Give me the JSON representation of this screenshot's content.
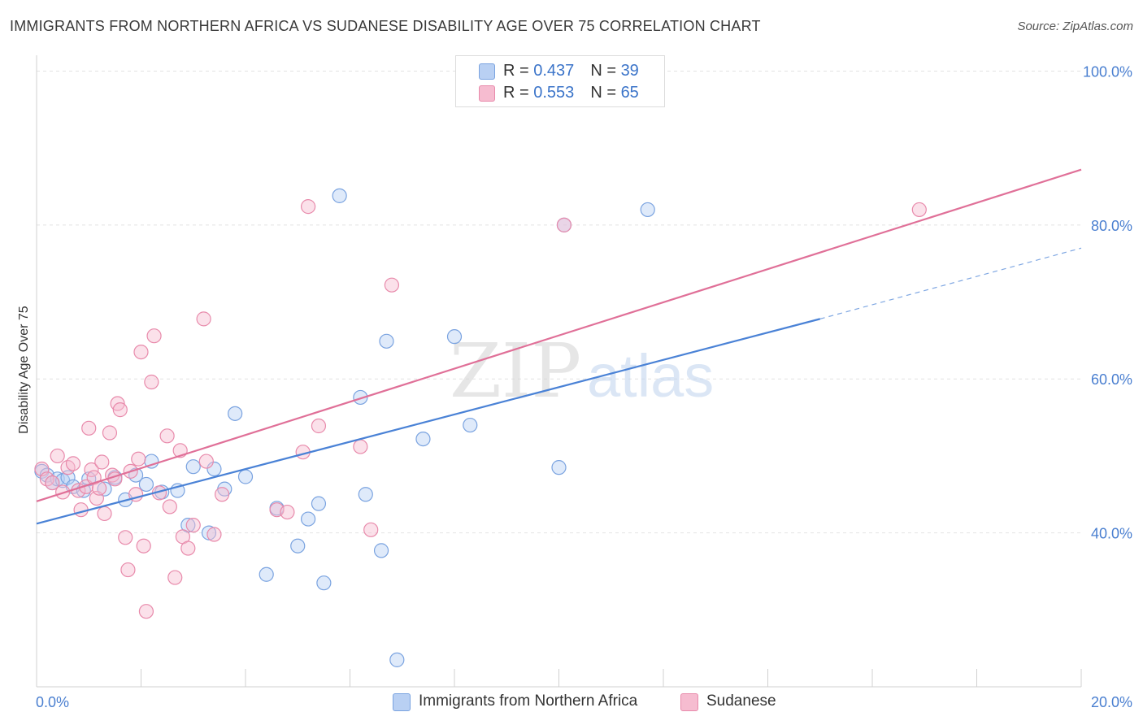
{
  "title": "IMMIGRANTS FROM NORTHERN AFRICA VS SUDANESE DISABILITY AGE OVER 75 CORRELATION CHART",
  "source": "Source: ZipAtlas.com",
  "colors": {
    "blue": "#4a82d6",
    "blue_fill": "#b9d0f3",
    "pink": "#e07098",
    "pink_fill": "#f6bcd0",
    "grid": "#e2e2e2",
    "axis_text": "#4a7fd0"
  },
  "legend": {
    "rows": [
      {
        "r_label": "R = ",
        "r_value": "0.437",
        "n_label": "N = ",
        "n_value": "39",
        "color": "#b9d0f3",
        "border": "#7aa3e0"
      },
      {
        "r_label": "R = ",
        "r_value": "0.553",
        "n_label": "N = ",
        "n_value": "65",
        "color": "#f6bcd0",
        "border": "#e88aab"
      }
    ]
  },
  "bottom_legend": [
    {
      "label": "Immigrants from Northern Africa",
      "color": "#b9d0f3",
      "border": "#7aa3e0"
    },
    {
      "label": "Sudanese",
      "color": "#f6bcd0",
      "border": "#e88aab"
    }
  ],
  "watermark": {
    "zip": "ZIP",
    "atlas": "atlas"
  },
  "chart_data": {
    "type": "scatter",
    "ylabel": "Disability Age Over 75",
    "xlim": [
      0,
      20
    ],
    "ylim": [
      20,
      101
    ],
    "x_tick_labels": [
      {
        "value": 0,
        "label": "0.0%"
      },
      {
        "value": 20,
        "label": "20.0%"
      }
    ],
    "y_tick_labels": [
      {
        "value": 100,
        "label": "100.0%"
      },
      {
        "value": 80,
        "label": "80.0%"
      },
      {
        "value": 60,
        "label": "60.0%"
      },
      {
        "value": 40,
        "label": "40.0%"
      }
    ],
    "y_gridlines": [
      40,
      60,
      80,
      100
    ],
    "series": [
      {
        "name": "Immigrants from Northern Africa",
        "color": "#4a82d6",
        "trend": {
          "x": [
            0,
            15
          ],
          "y": [
            41.2,
            67.8
          ],
          "dashed_to": [
            20,
            77.0
          ]
        },
        "points": [
          [
            0.1,
            48
          ],
          [
            0.2,
            47.5
          ],
          [
            0.3,
            46.5
          ],
          [
            0.4,
            47
          ],
          [
            0.5,
            46.8
          ],
          [
            0.6,
            47.2
          ],
          [
            0.7,
            46
          ],
          [
            0.9,
            45.5
          ],
          [
            1.0,
            47
          ],
          [
            1.3,
            45.7
          ],
          [
            1.5,
            47.2
          ],
          [
            1.7,
            44.3
          ],
          [
            1.9,
            47.5
          ],
          [
            2.1,
            46.3
          ],
          [
            2.2,
            49.3
          ],
          [
            2.4,
            45.3
          ],
          [
            2.7,
            45.5
          ],
          [
            2.9,
            41
          ],
          [
            3.0,
            48.6
          ],
          [
            3.3,
            40
          ],
          [
            3.4,
            48.3
          ],
          [
            3.6,
            45.7
          ],
          [
            3.8,
            55.5
          ],
          [
            4.0,
            47.3
          ],
          [
            4.4,
            34.6
          ],
          [
            4.6,
            43.2
          ],
          [
            5.0,
            38.3
          ],
          [
            5.2,
            41.8
          ],
          [
            5.4,
            43.8
          ],
          [
            5.5,
            33.5
          ],
          [
            5.8,
            83.8
          ],
          [
            6.2,
            57.6
          ],
          [
            6.3,
            45
          ],
          [
            6.6,
            37.7
          ],
          [
            6.7,
            64.9
          ],
          [
            6.9,
            23.5
          ],
          [
            7.4,
            52.2
          ],
          [
            8.0,
            65.5
          ],
          [
            8.3,
            54
          ],
          [
            10.0,
            48.5
          ],
          [
            10.1,
            80
          ],
          [
            11.7,
            82
          ]
        ]
      },
      {
        "name": "Sudanese",
        "color": "#e07098",
        "trend": {
          "x": [
            0,
            20
          ],
          "y": [
            44.1,
            87.2
          ]
        },
        "points": [
          [
            0.1,
            48.3
          ],
          [
            0.2,
            47
          ],
          [
            0.3,
            46.5
          ],
          [
            0.4,
            50
          ],
          [
            0.5,
            45.3
          ],
          [
            0.6,
            48.5
          ],
          [
            0.7,
            49
          ],
          [
            0.8,
            45.5
          ],
          [
            0.85,
            43
          ],
          [
            0.95,
            46
          ],
          [
            1.0,
            53.6
          ],
          [
            1.05,
            48.2
          ],
          [
            1.1,
            47.2
          ],
          [
            1.15,
            44.5
          ],
          [
            1.2,
            45.8
          ],
          [
            1.25,
            49.2
          ],
          [
            1.3,
            42.5
          ],
          [
            1.4,
            53
          ],
          [
            1.45,
            47.5
          ],
          [
            1.5,
            47
          ],
          [
            1.55,
            56.8
          ],
          [
            1.6,
            56
          ],
          [
            1.7,
            39.4
          ],
          [
            1.75,
            35.2
          ],
          [
            1.8,
            48
          ],
          [
            1.9,
            45
          ],
          [
            1.95,
            49.6
          ],
          [
            2.0,
            63.5
          ],
          [
            2.05,
            38.3
          ],
          [
            2.1,
            29.8
          ],
          [
            2.2,
            59.6
          ],
          [
            2.25,
            65.6
          ],
          [
            2.35,
            45.2
          ],
          [
            2.5,
            52.6
          ],
          [
            2.55,
            43.4
          ],
          [
            2.65,
            34.2
          ],
          [
            2.75,
            50.7
          ],
          [
            2.8,
            39.5
          ],
          [
            2.9,
            38
          ],
          [
            3.0,
            41
          ],
          [
            3.2,
            67.8
          ],
          [
            3.25,
            49.3
          ],
          [
            3.4,
            39.8
          ],
          [
            3.55,
            45
          ],
          [
            4.6,
            43
          ],
          [
            4.8,
            42.7
          ],
          [
            5.1,
            50.5
          ],
          [
            5.2,
            82.4
          ],
          [
            5.4,
            53.9
          ],
          [
            6.2,
            51.2
          ],
          [
            6.4,
            40.4
          ],
          [
            6.8,
            72.2
          ],
          [
            10.1,
            80
          ],
          [
            16.9,
            82
          ]
        ]
      }
    ]
  }
}
